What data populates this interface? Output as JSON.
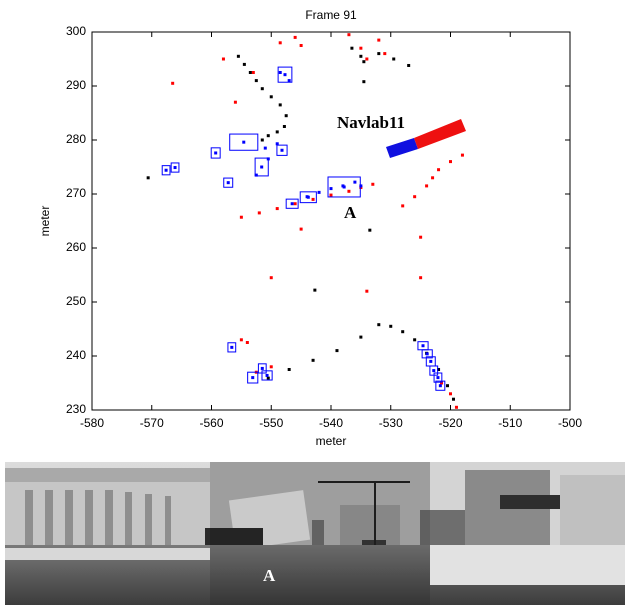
{
  "chart_data": {
    "type": "scatter",
    "title": "Frame 91",
    "x_label": "meter",
    "y_label": "meter",
    "annotations": [
      "Navlab11",
      "A"
    ],
    "xlim": [
      -580,
      -500
    ],
    "xticks": [
      -580,
      -570,
      -560,
      -550,
      -540,
      -530,
      -520,
      -510,
      -500
    ],
    "ylim": [
      230,
      300
    ],
    "yticks": [
      230,
      240,
      250,
      260,
      270,
      280,
      290,
      300
    ],
    "series": [
      {
        "color": "#ff0000",
        "x": [
          -546,
          -545,
          -548.5,
          -537,
          -535,
          -534,
          -532,
          -531,
          -553,
          -556,
          -558,
          -566.5,
          -555,
          -554,
          -555,
          -552,
          -549,
          -546,
          -543,
          -540,
          -537,
          -535,
          -533,
          -528,
          -526,
          -524,
          -523,
          -522,
          -520,
          -518,
          -534,
          -525,
          -550,
          -519,
          -545,
          -525,
          -552.5,
          -550,
          -521.5,
          -520
        ],
        "y": [
          299,
          297.5,
          298,
          299.5,
          297,
          295,
          298.5,
          296,
          292.5,
          287,
          295,
          290.5,
          243,
          242.5,
          265.7,
          266.5,
          267.3,
          268.2,
          269,
          269.8,
          270.5,
          271.2,
          271.8,
          267.8,
          269.5,
          271.5,
          273,
          274.5,
          276,
          277.2,
          252,
          254.5,
          254.5,
          230.5,
          263.5,
          262,
          237,
          238,
          235,
          233
        ]
      },
      {
        "color": "#000000",
        "x": [
          -555.5,
          -554.5,
          -553.5,
          -552.5,
          -551.5,
          -550,
          -548.5,
          -547.5,
          -547.8,
          -549,
          -550.5,
          -551.5,
          -536.5,
          -535,
          -534.5,
          -532,
          -529.5,
          -527,
          -550.5,
          -547,
          -543,
          -539,
          -535,
          -532,
          -530,
          -528,
          -526,
          -524,
          -522,
          -520.5,
          -519.5,
          -533.5,
          -542.7,
          -570.6,
          -534.5
        ],
        "y": [
          295.5,
          294,
          292.5,
          291,
          289.5,
          288,
          286.5,
          284.5,
          282.5,
          281.5,
          280.8,
          280,
          297,
          295.5,
          294.5,
          296,
          295,
          293.8,
          235.9,
          237.5,
          239.2,
          241,
          243.5,
          245.8,
          245.5,
          244.5,
          243,
          240.5,
          237.5,
          234.5,
          232,
          263.3,
          252.2,
          273,
          290.8
        ]
      },
      {
        "color": "#0000ff",
        "x": [
          -547.7,
          -554.6,
          -559.3,
          -551.6,
          -548.2,
          -557.2,
          -567.6,
          -566.1,
          -537.8,
          -543.8,
          -546.5,
          -556.6,
          -553.1,
          -551.5,
          -550.7,
          -524.6,
          -523.9,
          -523.3,
          -522.8,
          -522.1,
          -521.7,
          -551,
          -549,
          -552.5,
          -550.5,
          -548.5,
          -547,
          -544,
          -542,
          -540,
          -538,
          -536,
          -535
        ],
        "y": [
          292.1,
          279.6,
          277.6,
          275,
          278.1,
          272.1,
          274.4,
          274.9,
          271.3,
          269.4,
          268.2,
          241.6,
          236,
          237.7,
          236.4,
          241.9,
          240.4,
          239,
          237.3,
          236,
          234.5,
          278.5,
          279.3,
          273.5,
          276.5,
          292.5,
          291,
          269.5,
          270.3,
          271,
          271.5,
          272.2,
          271.5
        ]
      }
    ],
    "boxes": {
      "color": "#0000ff",
      "x": [
        -547.7,
        -554.6,
        -559.3,
        -551.6,
        -548.2,
        -557.2,
        -567.6,
        -566.1,
        -537.8,
        -543.8,
        -546.5,
        -556.6,
        -553.1,
        -551.5,
        -550.7,
        -524.6,
        -523.9,
        -523.3,
        -522.8,
        -522.1,
        -521.7
      ],
      "y": [
        292.1,
        279.6,
        277.6,
        275,
        278.1,
        272.1,
        274.4,
        274.9,
        271.3,
        269.4,
        268.2,
        241.6,
        236,
        237.7,
        236.4,
        241.9,
        240.4,
        239,
        237.3,
        236,
        234.5
      ],
      "w": [
        2.3,
        4.7,
        1.5,
        2.2,
        1.7,
        1.5,
        1.3,
        1.3,
        5.4,
        2.7,
        2,
        1.3,
        1.7,
        1.3,
        1.7,
        1.7,
        1.7,
        1.5,
        1.3,
        1.3,
        1.5
      ],
      "h": [
        2.8,
        3,
        1.9,
        3.3,
        1.9,
        1.7,
        1.7,
        1.7,
        3.7,
        2,
        1.7,
        1.7,
        2,
        1.7,
        1.7,
        1.5,
        1.5,
        1.7,
        1.7,
        1.7,
        1.7
      ]
    }
  },
  "image": {
    "label": "A"
  }
}
